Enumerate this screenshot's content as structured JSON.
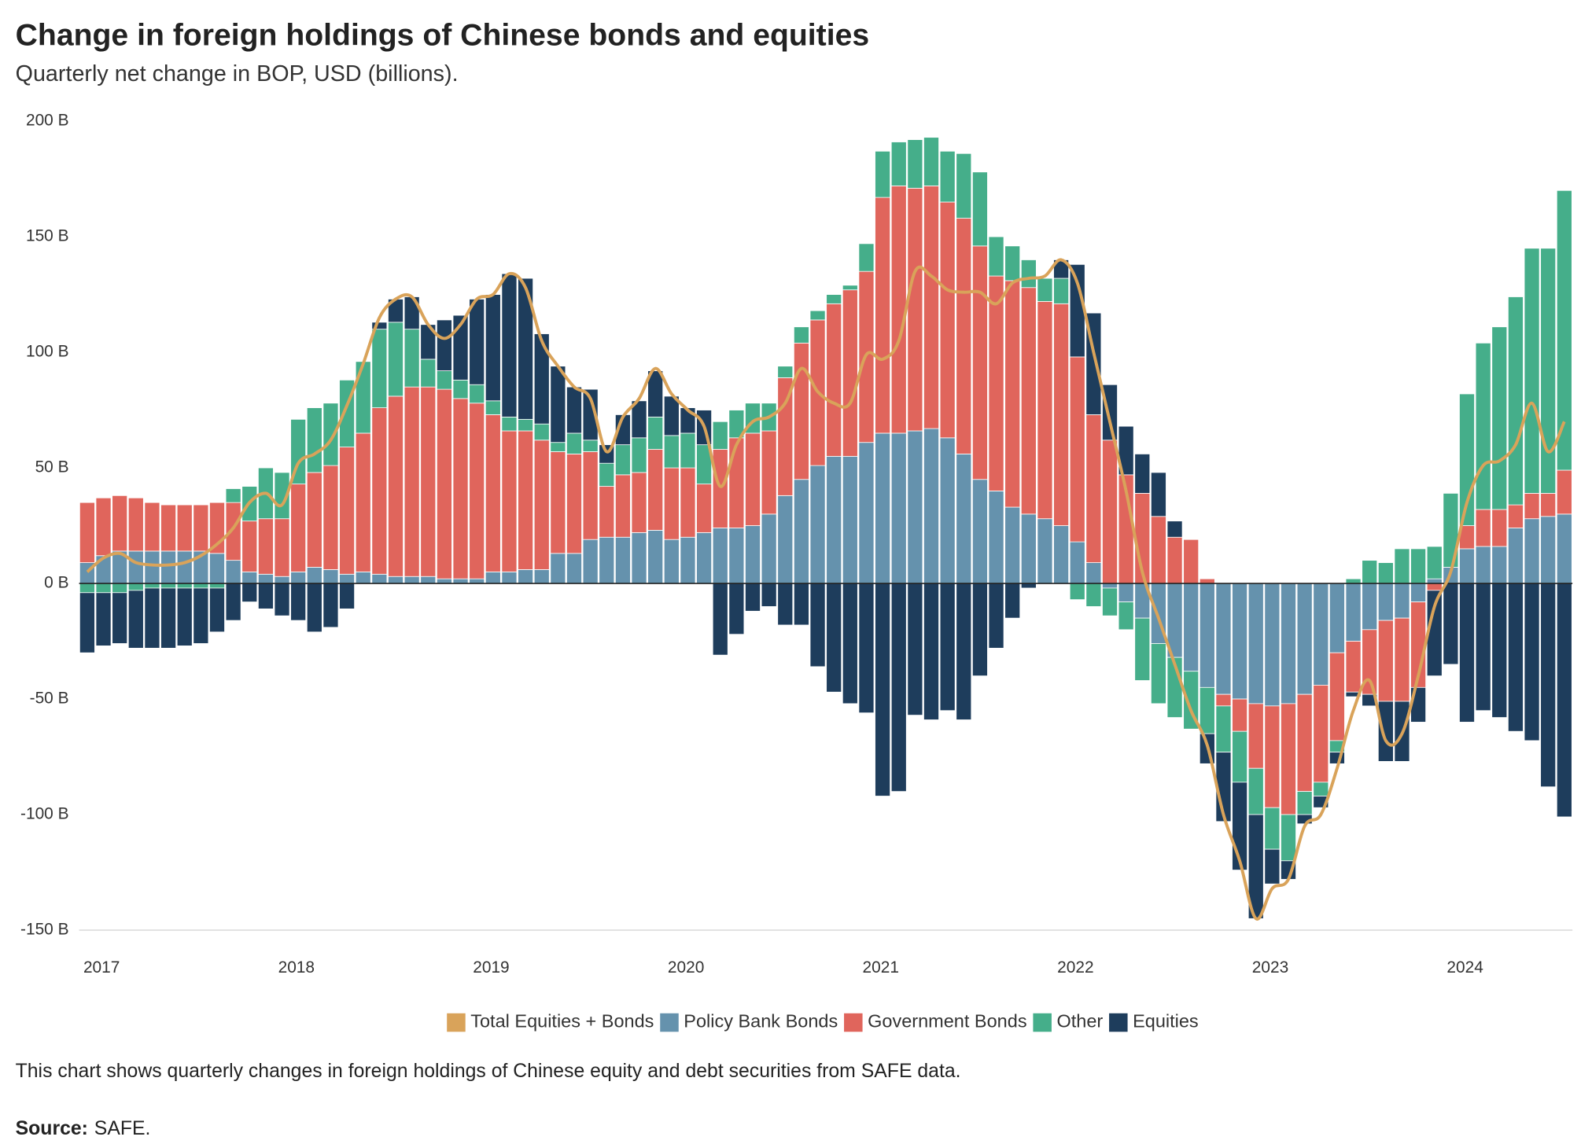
{
  "chart_data": {
    "type": "bar",
    "stacked": true,
    "title": "Change in foreign holdings of Chinese bonds and equities",
    "subtitle": "Quarterly net change in BOP, USD (billions).",
    "note": "This chart shows quarterly changes in foreign holdings of Chinese equity and debt securities from SAFE data.",
    "source_label": "Source:",
    "source": "SAFE.",
    "categories": [
      "2017",
      null,
      null,
      null,
      null,
      null,
      null,
      null,
      null,
      null,
      null,
      null,
      "2018",
      null,
      null,
      null,
      null,
      null,
      null,
      null,
      null,
      null,
      null,
      null,
      "2019",
      null,
      null,
      null,
      null,
      null,
      null,
      null,
      null,
      null,
      null,
      null,
      "2020",
      null,
      null,
      null,
      null,
      null,
      null,
      null,
      null,
      null,
      null,
      null,
      "2021",
      null,
      null,
      null,
      null,
      null,
      null,
      null,
      null,
      null,
      null,
      null,
      "2022",
      null,
      null,
      null,
      null,
      null,
      null,
      null,
      null,
      null,
      null,
      null,
      "2023",
      null,
      null,
      null,
      null,
      null,
      null,
      null,
      null,
      null,
      null,
      null,
      "2024",
      null,
      null,
      null,
      null,
      null,
      null,
      null
    ],
    "ylim": [
      -150,
      200
    ],
    "yticks": [
      {
        "value": -150,
        "label": "-150 B"
      },
      {
        "value": -100,
        "label": "-100 B"
      },
      {
        "value": -50,
        "label": "-50 B"
      },
      {
        "value": 0,
        "label": "0 B"
      },
      {
        "value": 50,
        "label": "50 B"
      },
      {
        "value": 100,
        "label": "100 B"
      },
      {
        "value": 150,
        "label": "150 B"
      },
      {
        "value": 200,
        "label": "200 B"
      }
    ],
    "grid": false,
    "legend": "bottom",
    "series": [
      {
        "name": "Total Equities + Bonds",
        "type": "line",
        "color": "#d9a35a",
        "values": [
          5,
          11,
          13,
          9,
          8,
          8,
          9,
          12,
          17,
          24,
          35,
          39,
          34,
          52,
          56,
          62,
          77,
          95,
          115,
          123,
          124,
          112,
          106,
          112,
          123,
          125,
          134,
          128,
          105,
          94,
          85,
          80,
          57,
          72,
          80,
          93,
          82,
          75,
          68,
          42,
          60,
          70,
          72,
          78,
          93,
          83,
          78,
          78,
          99,
          97,
          105,
          135,
          133,
          127,
          126,
          126,
          121,
          130,
          132,
          133,
          140,
          130,
          100,
          70,
          40,
          5,
          -15,
          -35,
          -55,
          -70,
          -100,
          -120,
          -145,
          -132,
          -128,
          -105,
          -100,
          -80,
          -55,
          -42,
          -68,
          -65,
          -40,
          -10,
          5,
          35,
          51,
          53,
          60,
          78,
          57,
          70
        ]
      },
      {
        "name": "Policy Bank Bonds",
        "color": "#6592ad",
        "values": [
          9,
          12,
          14,
          14,
          14,
          14,
          14,
          14,
          13,
          10,
          5,
          4,
          3,
          5,
          7,
          6,
          4,
          5,
          4,
          3,
          3,
          3,
          2,
          2,
          2,
          5,
          5,
          6,
          6,
          13,
          13,
          19,
          20,
          20,
          22,
          23,
          19,
          20,
          22,
          24,
          24,
          25,
          30,
          38,
          45,
          51,
          55,
          55,
          61,
          65,
          65,
          66,
          67,
          63,
          56,
          45,
          40,
          33,
          30,
          28,
          25,
          18,
          9,
          -2,
          -8,
          -15,
          -26,
          -32,
          -38,
          -45,
          -48,
          -50,
          -52,
          -53,
          -52,
          -48,
          -44,
          -30,
          -25,
          -20,
          -16,
          -15,
          -8,
          2,
          7,
          15,
          16,
          16,
          24,
          28,
          29,
          30
        ]
      },
      {
        "name": "Government Bonds",
        "color": "#e0655c",
        "values": [
          26,
          25,
          24,
          23,
          21,
          20,
          20,
          20,
          22,
          25,
          22,
          24,
          25,
          38,
          41,
          45,
          55,
          60,
          72,
          78,
          82,
          82,
          82,
          78,
          76,
          68,
          61,
          60,
          56,
          44,
          43,
          38,
          22,
          27,
          26,
          35,
          31,
          30,
          21,
          34,
          39,
          40,
          36,
          51,
          59,
          63,
          66,
          72,
          74,
          102,
          107,
          105,
          105,
          102,
          102,
          101,
          93,
          98,
          98,
          94,
          96,
          80,
          64,
          62,
          47,
          39,
          29,
          20,
          19,
          2,
          -5,
          -14,
          -28,
          -44,
          -48,
          -42,
          -42,
          -38,
          -22,
          -28,
          -35,
          -36,
          -37,
          -3,
          0,
          10,
          16,
          16,
          10,
          11,
          10,
          19
        ]
      },
      {
        "name": "Other",
        "color": "#45ae8a",
        "values": [
          -4,
          -4,
          -4,
          -3,
          -2,
          -2,
          -2,
          -2,
          -2,
          6,
          15,
          22,
          20,
          28,
          28,
          27,
          29,
          31,
          34,
          32,
          25,
          12,
          8,
          8,
          8,
          6,
          6,
          5,
          7,
          4,
          9,
          5,
          10,
          13,
          15,
          14,
          14,
          15,
          17,
          12,
          12,
          13,
          12,
          5,
          7,
          4,
          4,
          2,
          12,
          20,
          19,
          21,
          21,
          22,
          28,
          32,
          17,
          15,
          12,
          10,
          11,
          -7,
          -10,
          -12,
          -12,
          -27,
          -26,
          -26,
          -25,
          -20,
          -20,
          -22,
          -20,
          -18,
          -20,
          -10,
          -6,
          -5,
          2,
          10,
          9,
          15,
          15,
          14,
          32,
          57,
          72,
          79,
          90,
          106,
          106,
          121
        ]
      },
      {
        "name": "Equities",
        "color": "#1e3d5c",
        "values": [
          -26,
          -23,
          -22,
          -25,
          -26,
          -26,
          -25,
          -24,
          -19,
          -16,
          -8,
          -11,
          -14,
          -16,
          -21,
          -19,
          -11,
          0,
          3,
          10,
          14,
          15,
          22,
          28,
          37,
          46,
          62,
          61,
          39,
          33,
          20,
          22,
          8,
          13,
          16,
          20,
          17,
          11,
          15,
          -31,
          -22,
          -12,
          -10,
          -18,
          -18,
          -36,
          -47,
          -52,
          -56,
          -92,
          -90,
          -57,
          -59,
          -55,
          -59,
          -40,
          -28,
          -15,
          -2,
          0,
          8,
          40,
          44,
          24,
          21,
          17,
          19,
          7,
          0,
          -13,
          -30,
          -38,
          -45,
          -15,
          -8,
          -4,
          -5,
          -5,
          -2,
          -5,
          -26,
          -26,
          -15,
          -37,
          -35,
          -60,
          -55,
          -58,
          -64,
          -68,
          -88,
          -101
        ]
      }
    ]
  }
}
